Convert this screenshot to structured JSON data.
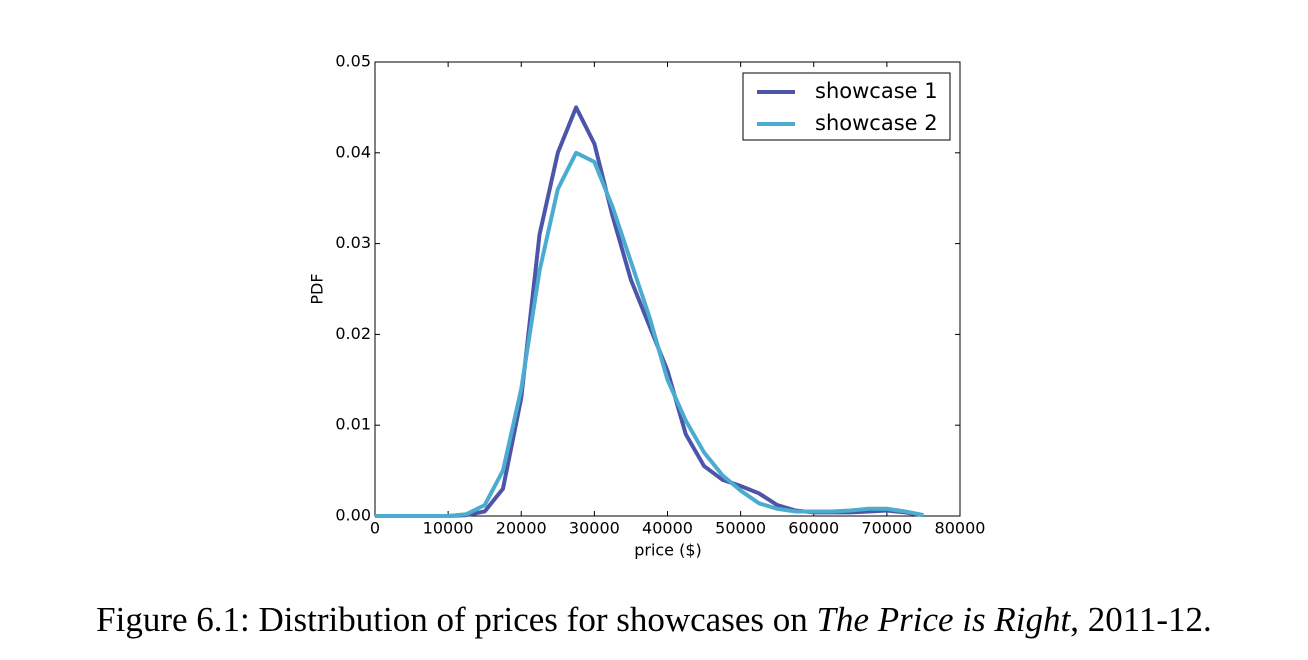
{
  "chart_data": {
    "type": "line",
    "ylabel": "PDF",
    "xlabel": "price ($)",
    "x": [
      0,
      10000,
      12500,
      15000,
      17500,
      20000,
      22500,
      25000,
      27500,
      30000,
      32500,
      35000,
      37500,
      40000,
      42500,
      45000,
      47500,
      50000,
      52500,
      55000,
      57500,
      60000,
      62500,
      65000,
      67500,
      70000,
      72500,
      75000
    ],
    "series": [
      {
        "name": "showcase 1",
        "color": "#4c55a8",
        "values": [
          0,
          0,
          0.0001,
          0.0005,
          0.003,
          0.013,
          0.031,
          0.04,
          0.045,
          0.041,
          0.033,
          0.026,
          0.021,
          0.016,
          0.009,
          0.0055,
          0.004,
          0.0033,
          0.0025,
          0.0012,
          0.0006,
          0.0004,
          0.0004,
          0.0004,
          0.0005,
          0.0006,
          0.0004,
          0.0001
        ]
      },
      {
        "name": "showcase 2",
        "color": "#4bacd0",
        "values": [
          0,
          0,
          0.0002,
          0.0012,
          0.005,
          0.014,
          0.027,
          0.036,
          0.04,
          0.039,
          0.034,
          0.028,
          0.022,
          0.015,
          0.0105,
          0.007,
          0.0045,
          0.0028,
          0.0014,
          0.0008,
          0.0005,
          0.0005,
          0.0005,
          0.0006,
          0.0008,
          0.0008,
          0.0005,
          0.0001
        ]
      }
    ],
    "xlim": [
      0,
      80000
    ],
    "xticks": [
      0,
      10000,
      20000,
      30000,
      40000,
      50000,
      60000,
      70000,
      80000
    ],
    "ylim": [
      0,
      0.05
    ],
    "yticks": [
      {
        "value": 0,
        "label": "0.00"
      },
      0.01,
      0.02,
      0.03,
      0.04,
      0.05
    ],
    "legend": "upper right"
  },
  "caption": {
    "prefix": "Figure 6.1: Distribution of prices for showcases on ",
    "title": "The Price is Right",
    "suffix": ", 2011-12."
  }
}
